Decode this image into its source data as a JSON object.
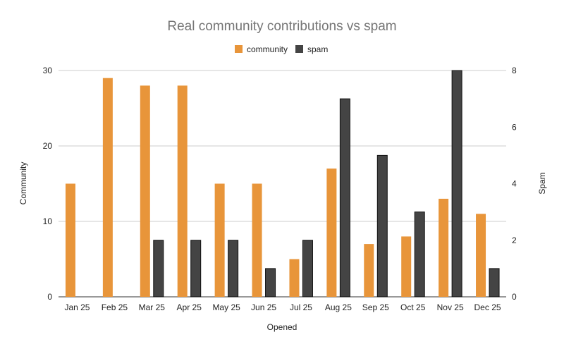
{
  "chart_data": {
    "type": "bar",
    "title": "Real community contributions vs spam",
    "xlabel": "Opened",
    "ylabel_left": "Community",
    "ylabel_right": "Spam",
    "categories": [
      "Jan 25",
      "Feb 25",
      "Mar 25",
      "Apr 25",
      "May 25",
      "Jun 25",
      "Jul 25",
      "Aug 25",
      "Sep 25",
      "Oct 25",
      "Nov 25",
      "Dec 25"
    ],
    "series": [
      {
        "name": "community",
        "axis": "left",
        "color": "#e8953a",
        "values": [
          15,
          29,
          28,
          28,
          15,
          15,
          5,
          17,
          7,
          8,
          13,
          11
        ]
      },
      {
        "name": "spam",
        "axis": "right",
        "color": "#444444",
        "values": [
          0,
          0,
          2,
          2,
          2,
          1,
          2,
          7,
          5,
          3,
          8,
          1
        ]
      }
    ],
    "ylim_left": [
      0,
      30
    ],
    "yticks_left": [
      0,
      10,
      20,
      30
    ],
    "ylim_right": [
      0,
      8
    ],
    "yticks_right": [
      0,
      2,
      4,
      6,
      8
    ],
    "legend_position": "top-center",
    "grid": true
  }
}
